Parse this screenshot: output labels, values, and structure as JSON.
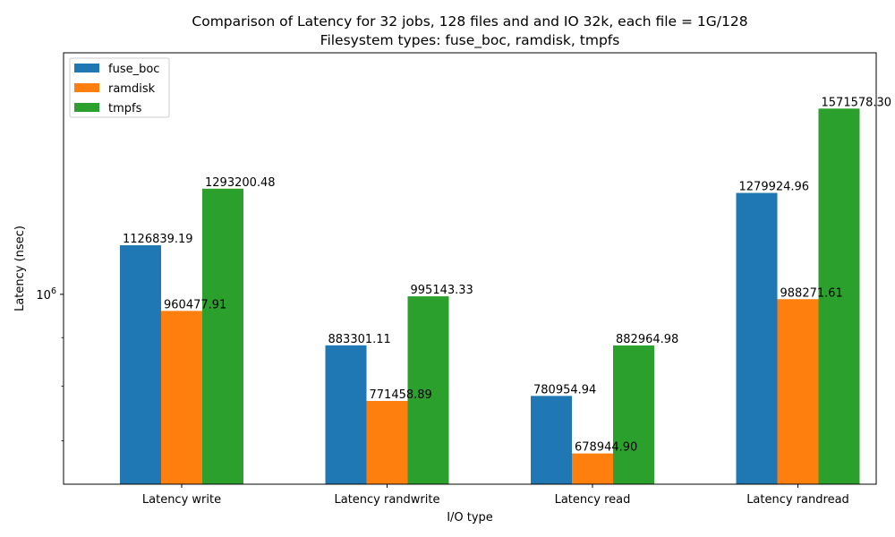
{
  "chart_data": {
    "type": "bar",
    "title": "Comparison of Latency for 32 jobs, 128 files and  and IO 32k, each file = 1G/128",
    "subtitle": "Filesystem types: fuse_boc, ramdisk, tmpfs",
    "xlabel": "I/O type",
    "ylabel": "Latency (nsec)",
    "y_scale": "log",
    "ylim": [
      630000,
      1800000
    ],
    "y_major_tick": {
      "value": 1000000,
      "label_base": "10",
      "label_exp": "6"
    },
    "y_minor_ticks": [
      700000,
      800000,
      900000
    ],
    "categories": [
      "Latency write",
      "Latency randwrite",
      "Latency read",
      "Latency randread"
    ],
    "series": [
      {
        "name": "fuse_boc",
        "color": "#1f77b4",
        "values": [
          1126839.19,
          883301.11,
          780954.94,
          1279924.96
        ],
        "labels": [
          "1126839.19",
          "883301.11",
          "780954.94",
          "1279924.96"
        ]
      },
      {
        "name": "ramdisk",
        "color": "#ff7f0e",
        "values": [
          960477.91,
          771458.89,
          678944.9,
          988271.61
        ],
        "labels": [
          "960477.91",
          "771458.89",
          "678944.90",
          "988271.61"
        ]
      },
      {
        "name": "tmpfs",
        "color": "#2ca02c",
        "values": [
          1293200.48,
          995143.33,
          882964.98,
          1571578.3
        ],
        "labels": [
          "1293200.48",
          "995143.33",
          "882964.98",
          "1571578.30"
        ]
      }
    ],
    "legend_position": "top-left",
    "grid": false
  }
}
